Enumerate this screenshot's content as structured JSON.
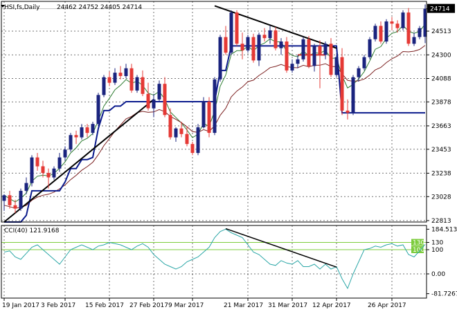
{
  "chart_data": [
    {
      "type": "candlestick",
      "title": "HSI,fs,Daily",
      "ohlc_readout": "24462 24752 24405 24714",
      "price_tick_labels": [
        "24714",
        "24513",
        "24300",
        "24088",
        "23878",
        "23663",
        "23453",
        "23238",
        "23028",
        "22813"
      ],
      "price_ticks": [
        24714,
        24513,
        24300,
        24088,
        23878,
        23663,
        23453,
        23238,
        23028,
        22813
      ],
      "ylim": [
        22800,
        24780
      ],
      "last_price": 24714,
      "last_price_label": "24714",
      "date_labels": [
        "19 Jan 2017",
        "3 Feb 2017",
        "15 Feb 2017",
        "27 Feb 2017",
        "9 Mar 2017",
        "21 Mar 2017",
        "31 Mar 2017",
        "12 Apr 2017",
        "26 Apr 2017"
      ],
      "date_label_index": [
        0,
        11,
        19,
        27,
        34,
        44,
        52,
        60,
        70
      ],
      "colors": {
        "up": "#1a237e",
        "down": "#e53935",
        "ema_fast": "#2e7d32",
        "ema_slow": "#7b1f1f",
        "stop": "#0a1a8c",
        "trendline": "#000000",
        "flat_level": "#c62828"
      },
      "candles": [
        [
          22990,
          23050,
          22900,
          23040
        ],
        [
          23040,
          23080,
          22920,
          22950
        ],
        [
          22950,
          23000,
          22880,
          22920
        ],
        [
          22920,
          23100,
          22900,
          23080
        ],
        [
          23080,
          23200,
          23050,
          23150
        ],
        [
          23150,
          23400,
          23120,
          23380
        ],
        [
          23380,
          23420,
          23260,
          23300
        ],
        [
          23300,
          23350,
          23200,
          23240
        ],
        [
          23240,
          23280,
          23100,
          23200
        ],
        [
          23200,
          23300,
          23180,
          23280
        ],
        [
          23280,
          23420,
          23250,
          23380
        ],
        [
          23380,
          23480,
          23350,
          23450
        ],
        [
          23450,
          23600,
          23430,
          23580
        ],
        [
          23580,
          23620,
          23500,
          23560
        ],
        [
          23560,
          23680,
          23540,
          23650
        ],
        [
          23650,
          23680,
          23560,
          23600
        ],
        [
          23600,
          23700,
          23580,
          23680
        ],
        [
          23680,
          23960,
          23660,
          23940
        ],
        [
          23940,
          24120,
          23920,
          24100
        ],
        [
          24100,
          24150,
          24020,
          24050
        ],
        [
          24050,
          24180,
          24030,
          24140
        ],
        [
          24140,
          24200,
          24080,
          24110
        ],
        [
          24110,
          24220,
          24090,
          24180
        ],
        [
          24180,
          24220,
          23960,
          23980
        ],
        [
          23980,
          24120,
          23960,
          24100
        ],
        [
          24100,
          24160,
          23930,
          23950
        ],
        [
          23950,
          24050,
          23800,
          23820
        ],
        [
          23820,
          23950,
          23740,
          23900
        ],
        [
          23900,
          24070,
          23880,
          24040
        ],
        [
          24040,
          24100,
          23740,
          23760
        ],
        [
          23760,
          23820,
          23540,
          23560
        ],
        [
          23560,
          23650,
          23520,
          23640
        ],
        [
          23640,
          23700,
          23560,
          23590
        ],
        [
          23590,
          23660,
          23480,
          23500
        ],
        [
          23500,
          23520,
          23400,
          23420
        ],
        [
          23420,
          23680,
          23400,
          23650
        ],
        [
          23650,
          23920,
          23640,
          23880
        ],
        [
          23880,
          23920,
          23560,
          23600
        ],
        [
          23600,
          24100,
          23580,
          24080
        ],
        [
          24080,
          24480,
          24060,
          24460
        ],
        [
          24460,
          24560,
          24300,
          24320
        ],
        [
          24320,
          24700,
          24300,
          24680
        ],
        [
          24680,
          24700,
          24380,
          24400
        ],
        [
          24400,
          24500,
          24260,
          24340
        ],
        [
          24340,
          24480,
          24320,
          24460
        ],
        [
          24460,
          24490,
          24230,
          24250
        ],
        [
          24250,
          24500,
          24200,
          24480
        ],
        [
          24480,
          24540,
          24420,
          24450
        ],
        [
          24450,
          24560,
          24400,
          24520
        ],
        [
          24520,
          24550,
          24340,
          24360
        ],
        [
          24360,
          24450,
          24300,
          24420
        ],
        [
          24420,
          24460,
          24140,
          24160
        ],
        [
          24160,
          24260,
          24140,
          24220
        ],
        [
          24220,
          24300,
          24180,
          24260
        ],
        [
          24260,
          24460,
          24240,
          24440
        ],
        [
          24440,
          24470,
          24180,
          24200
        ],
        [
          24200,
          24400,
          24150,
          24380
        ],
        [
          24380,
          24430,
          24000,
          24300
        ],
        [
          24300,
          24420,
          24260,
          24400
        ],
        [
          24400,
          24450,
          24100,
          24120
        ],
        [
          24120,
          24300,
          24100,
          24280
        ],
        [
          24280,
          24360,
          23760,
          23800
        ],
        [
          23800,
          23900,
          23720,
          23780
        ],
        [
          23780,
          24120,
          23760,
          24100
        ],
        [
          24100,
          24200,
          24060,
          24180
        ],
        [
          24180,
          24300,
          24160,
          24280
        ],
        [
          24280,
          24460,
          24260,
          24440
        ],
        [
          24440,
          24580,
          24420,
          24560
        ],
        [
          24560,
          24600,
          24400,
          24420
        ],
        [
          24420,
          24620,
          24400,
          24600
        ],
        [
          24600,
          24640,
          24520,
          24580
        ],
        [
          24580,
          24610,
          24500,
          24540
        ],
        [
          24540,
          24700,
          24520,
          24680
        ],
        [
          24680,
          24720,
          24380,
          24400
        ],
        [
          24400,
          24500,
          24380,
          24460
        ],
        [
          24460,
          24560,
          24440,
          24540
        ],
        [
          24462,
          24752,
          24405,
          24714
        ]
      ],
      "flat_level": {
        "from_index": 53,
        "to_index": 58,
        "y": 24300
      },
      "trendlines": [
        {
          "from": [
            0,
            22700
          ],
          "to": [
            27,
            23900
          ]
        },
        {
          "from": [
            38,
            24740
          ],
          "to": [
            60,
            24360
          ]
        }
      ]
    },
    {
      "type": "line",
      "title": "CCI(40) 121.9168",
      "y_tick_labels": [
        "184.5133",
        "130",
        "100",
        "0.00",
        "-81.7267"
      ],
      "y_ticks": [
        184.5133,
        130,
        100,
        0,
        -81.7267
      ],
      "ylim": [
        -100,
        200
      ],
      "levels": [
        130,
        100
      ],
      "badge_labels": [
        "130",
        "100"
      ],
      "color": "#2aa6a6",
      "level_color": "#7ccc3c",
      "values": [
        90,
        95,
        70,
        60,
        85,
        110,
        120,
        100,
        80,
        60,
        40,
        70,
        100,
        110,
        120,
        110,
        100,
        115,
        120,
        130,
        125,
        120,
        110,
        100,
        115,
        125,
        110,
        80,
        60,
        40,
        30,
        20,
        30,
        50,
        60,
        70,
        90,
        110,
        150,
        175,
        185,
        170,
        160,
        150,
        120,
        90,
        80,
        60,
        40,
        35,
        55,
        45,
        40,
        55,
        30,
        30,
        40,
        20,
        40,
        20,
        30,
        -20,
        -60,
        0,
        50,
        100,
        105,
        115,
        110,
        120,
        125,
        115,
        120,
        80,
        70,
        95,
        121.9168
      ],
      "trendline": {
        "from": [
          40,
          187
        ],
        "to": [
          60,
          28
        ]
      }
    }
  ]
}
